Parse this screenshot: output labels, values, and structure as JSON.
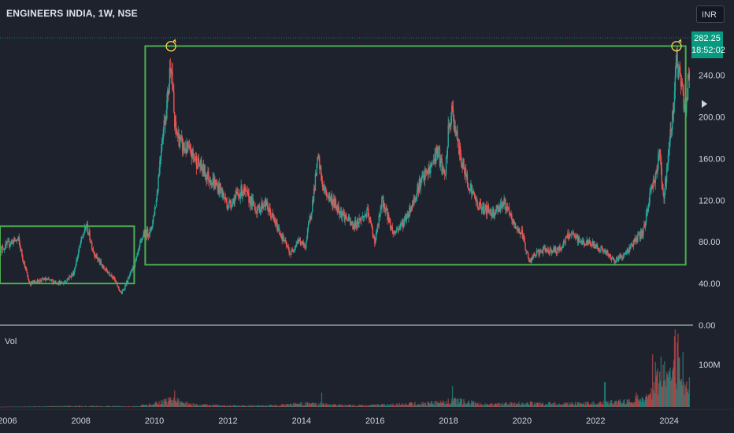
{
  "header": {
    "symbol_title": "ENGINEERS INDIA, 1W, NSE",
    "currency_button": "INR"
  },
  "price_tag": {
    "price": "282.25",
    "countdown": "18:52:02",
    "color": "#089981"
  },
  "volume_pane": {
    "label": "Vol",
    "axis_tick": "100M"
  },
  "colors": {
    "up": "#26a69a",
    "down": "#ef5350",
    "box": "#4caf50",
    "annotation": "#ffd54f",
    "background": "#1e222d"
  },
  "chart_data": {
    "type": "candlestick",
    "xlim": [
      2005.8,
      2024.65
    ],
    "ylim": [
      0,
      282
    ],
    "y_ticks": [
      "0.00",
      "40.00",
      "80.00",
      "120.00",
      "160.00",
      "200.00",
      "240.00"
    ],
    "x_ticks": [
      "2006",
      "2008",
      "2010",
      "2012",
      "2014",
      "2016",
      "2018",
      "2020",
      "2022",
      "2024"
    ],
    "grid": false,
    "last_price": 282.25,
    "price_path": [
      [
        2005.8,
        72
      ],
      [
        2006.1,
        80
      ],
      [
        2006.3,
        82
      ],
      [
        2006.45,
        60
      ],
      [
        2006.6,
        40
      ],
      [
        2007.0,
        44
      ],
      [
        2007.5,
        40
      ],
      [
        2007.8,
        50
      ],
      [
        2008.0,
        80
      ],
      [
        2008.15,
        96
      ],
      [
        2008.35,
        70
      ],
      [
        2008.6,
        55
      ],
      [
        2008.85,
        48
      ],
      [
        2009.1,
        30
      ],
      [
        2009.3,
        45
      ],
      [
        2009.5,
        62
      ],
      [
        2009.7,
        88
      ],
      [
        2009.9,
        90
      ],
      [
        2010.05,
        120
      ],
      [
        2010.2,
        178
      ],
      [
        2010.35,
        215
      ],
      [
        2010.45,
        258
      ],
      [
        2010.55,
        190
      ],
      [
        2010.75,
        172
      ],
      [
        2011.0,
        165
      ],
      [
        2011.4,
        145
      ],
      [
        2011.8,
        130
      ],
      [
        2012.0,
        115
      ],
      [
        2012.4,
        130
      ],
      [
        2012.8,
        110
      ],
      [
        2013.0,
        118
      ],
      [
        2013.4,
        90
      ],
      [
        2013.7,
        68
      ],
      [
        2013.9,
        82
      ],
      [
        2014.1,
        75
      ],
      [
        2014.3,
        118
      ],
      [
        2014.45,
        160
      ],
      [
        2014.6,
        130
      ],
      [
        2015.0,
        112
      ],
      [
        2015.4,
        95
      ],
      [
        2015.8,
        108
      ],
      [
        2016.0,
        80
      ],
      [
        2016.2,
        120
      ],
      [
        2016.5,
        88
      ],
      [
        2016.8,
        100
      ],
      [
        2017.0,
        115
      ],
      [
        2017.2,
        135
      ],
      [
        2017.5,
        150
      ],
      [
        2017.7,
        168
      ],
      [
        2017.9,
        140
      ],
      [
        2018.0,
        188
      ],
      [
        2018.1,
        205
      ],
      [
        2018.3,
        165
      ],
      [
        2018.5,
        140
      ],
      [
        2018.8,
        115
      ],
      [
        2019.2,
        108
      ],
      [
        2019.5,
        118
      ],
      [
        2019.8,
        95
      ],
      [
        2020.0,
        88
      ],
      [
        2020.2,
        60
      ],
      [
        2020.35,
        68
      ],
      [
        2020.6,
        72
      ],
      [
        2021.0,
        72
      ],
      [
        2021.3,
        88
      ],
      [
        2021.6,
        80
      ],
      [
        2021.9,
        78
      ],
      [
        2022.2,
        72
      ],
      [
        2022.5,
        62
      ],
      [
        2022.8,
        68
      ],
      [
        2023.0,
        78
      ],
      [
        2023.3,
        90
      ],
      [
        2023.5,
        130
      ],
      [
        2023.6,
        140
      ],
      [
        2023.75,
        165
      ],
      [
        2023.85,
        120
      ],
      [
        2024.0,
        170
      ],
      [
        2024.1,
        205
      ],
      [
        2024.2,
        258
      ],
      [
        2024.3,
        235
      ],
      [
        2024.45,
        205
      ],
      [
        2024.55,
        250
      ]
    ],
    "volume_path": [
      [
        2005.8,
        0.3
      ],
      [
        2008.0,
        1.5
      ],
      [
        2009.5,
        1.0
      ],
      [
        2010.0,
        5
      ],
      [
        2010.5,
        12
      ],
      [
        2011.0,
        4
      ],
      [
        2012.0,
        2
      ],
      [
        2013.0,
        2
      ],
      [
        2014.3,
        6
      ],
      [
        2015.0,
        3
      ],
      [
        2016.0,
        3
      ],
      [
        2017.5,
        6
      ],
      [
        2018.2,
        10
      ],
      [
        2019.0,
        4
      ],
      [
        2020.2,
        6
      ],
      [
        2021.0,
        5
      ],
      [
        2022.0,
        6
      ],
      [
        2023.0,
        9
      ],
      [
        2023.5,
        25
      ],
      [
        2023.7,
        60
      ],
      [
        2024.0,
        40
      ],
      [
        2024.2,
        90
      ],
      [
        2024.5,
        35
      ]
    ],
    "volume_spikes": [
      [
        2010.55,
        25
      ],
      [
        2014.55,
        22
      ],
      [
        2018.1,
        32
      ],
      [
        2022.25,
        38
      ],
      [
        2023.1,
        22
      ],
      [
        2023.55,
        80
      ],
      [
        2023.65,
        48
      ],
      [
        2024.22,
        98
      ],
      [
        2024.27,
        75
      ],
      [
        2024.1,
        60
      ]
    ],
    "annotations": [
      {
        "type": "rectangle",
        "x": [
          2005.8,
          2009.45
        ],
        "y": [
          40,
          95
        ]
      },
      {
        "type": "rectangle",
        "x": [
          2009.75,
          2024.45
        ],
        "y": [
          58,
          268
        ]
      },
      {
        "type": "circle-marker",
        "x": 2010.45,
        "y": 258
      },
      {
        "type": "circle-marker",
        "x": 2024.2,
        "y": 258
      }
    ]
  }
}
